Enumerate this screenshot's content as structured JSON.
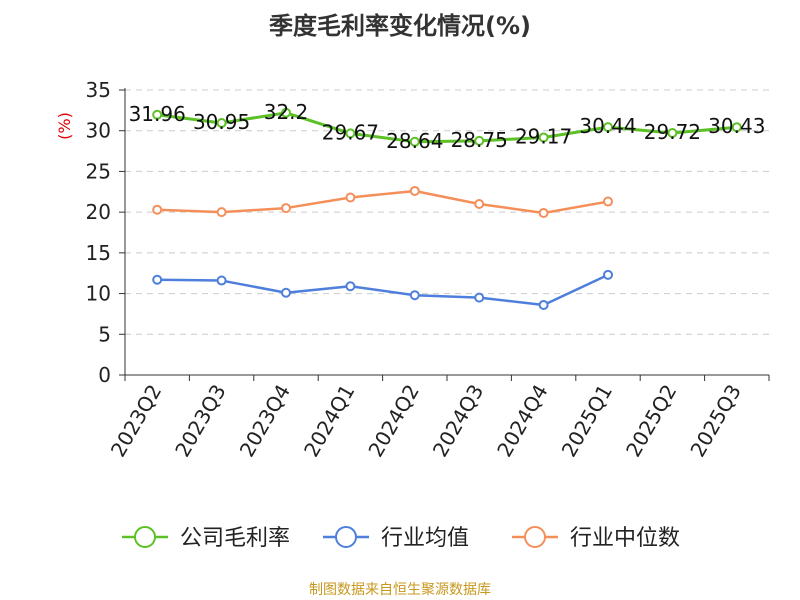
{
  "chart_data": {
    "type": "line",
    "title": "季度毛利率变化情况(%)",
    "ylabel": "(%)",
    "xlabel": "",
    "categories": [
      "2023Q2",
      "2023Q3",
      "2023Q4",
      "2024Q1",
      "2024Q2",
      "2024Q3",
      "2024Q4",
      "2025Q1",
      "2025Q2",
      "2025Q3"
    ],
    "ylim": [
      0,
      35
    ],
    "yticks": [
      0,
      5,
      10,
      15,
      20,
      25,
      30,
      35
    ],
    "grid": true,
    "legend_position": "bottom",
    "series": [
      {
        "name": "公司毛利率",
        "color": "#5cc126",
        "values": [
          31.96,
          30.95,
          32.2,
          29.67,
          28.64,
          28.75,
          29.17,
          30.44,
          29.72,
          30.43
        ],
        "labels": [
          "31.96",
          "30.95",
          "32.2",
          "29.67",
          "28.64",
          "28.75",
          "29.17",
          "30.44",
          "29.72",
          "30.43"
        ]
      },
      {
        "name": "行业均值",
        "color": "#4f7fdc",
        "values": [
          11.7,
          11.6,
          10.1,
          10.9,
          9.8,
          9.5,
          8.6,
          12.3,
          null,
          null
        ]
      },
      {
        "name": "行业中位数",
        "color": "#f58f5a",
        "values": [
          20.3,
          20.0,
          20.5,
          21.8,
          22.6,
          21.0,
          19.9,
          21.3,
          null,
          null
        ]
      }
    ],
    "source": "制图数据来自恒生聚源数据库"
  }
}
